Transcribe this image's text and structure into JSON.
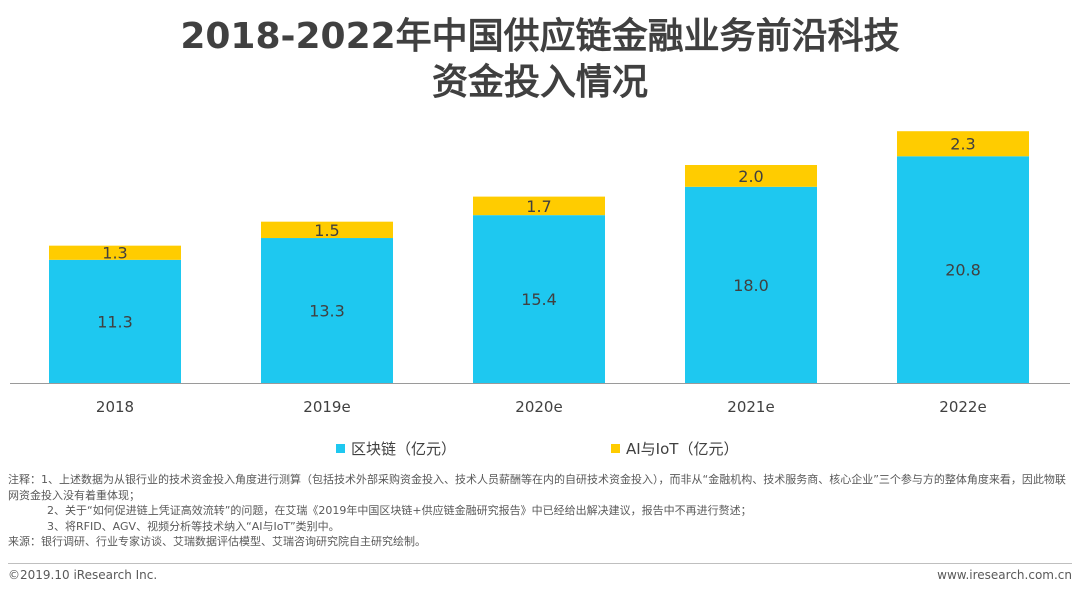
{
  "title": {
    "line1": "2018-2022年中国供应链金融业务前沿科技",
    "line2": "资金投入情况"
  },
  "colors": {
    "blockchain": "#1EC8F0",
    "ai_iot": "#FFCC00",
    "axis": "#9a9a9a",
    "text": "#404040"
  },
  "chart_data": {
    "type": "bar",
    "stacked": true,
    "categories": [
      "2018",
      "2019e",
      "2020e",
      "2021e",
      "2022e"
    ],
    "series": [
      {
        "name": "区块链（亿元）",
        "values": [
          11.3,
          13.3,
          15.4,
          18.0,
          20.8
        ]
      },
      {
        "name": "AI与IoT（亿元）",
        "values": [
          1.3,
          1.5,
          1.7,
          2.0,
          2.3
        ]
      }
    ],
    "value_labels": {
      "blockchain": [
        "11.3",
        "13.3",
        "15.4",
        "18.0",
        "20.8"
      ],
      "ai_iot": [
        "1.3",
        "1.5",
        "1.7",
        "2.0",
        "2.3"
      ]
    },
    "title": "2018-2022年中国供应链金融业务前沿科技资金投入情况",
    "xlabel": "",
    "ylabel": "",
    "grid": false,
    "legend_position": "bottom"
  },
  "legend": {
    "blockchain": "区块链（亿元）",
    "ai_iot": "AI与IoT（亿元）"
  },
  "notes": {
    "line1": "注释：1、上述数据为从银行业的技术资金投入角度进行测算（包括技术外部采购资金投入、技术人员薪酬等在内的自研技术资金投入），而非从“金融机构、技术服务商、核心企业”三个参与方的整体角度来看，因此物联网资金投入没有着重体现；",
    "line2": "2、关于“如何促进链上凭证高效流转”的问题，在艾瑞《2019年中国区块链+供应链金融研究报告》中已经给出解决建议，报告中不再进行赘述；",
    "line3": "3、将RFID、AGV、视频分析等技术纳入“AI与IoT”类别中。",
    "source": "来源：银行调研、行业专家访谈、艾瑞数据评估模型、艾瑞咨询研究院自主研究绘制。"
  },
  "footer": {
    "copyright": "©2019.10 iResearch Inc.",
    "website": "www.iresearch.com.cn"
  }
}
